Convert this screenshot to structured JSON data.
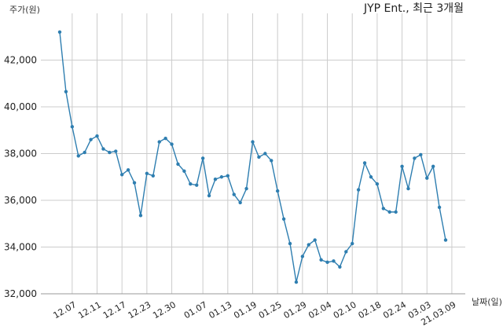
{
  "chart_data": {
    "type": "line",
    "title": "JYP Ent., 최근 3개월",
    "ylabel": "주가(원)",
    "xlabel": "날짜(일)",
    "ylim": [
      32000,
      44000
    ],
    "yticks": [
      32000,
      34000,
      36000,
      38000,
      40000,
      42000
    ],
    "ytick_labels": [
      "32,000",
      "34,000",
      "36,000",
      "38,000",
      "40,000",
      "42,000"
    ],
    "grid": true,
    "xtick_labels": [
      "12.07",
      "12.11",
      "12.17",
      "12.23",
      "12.30",
      "01.07",
      "01.13",
      "01.19",
      "01.25",
      "01.29",
      "02.04",
      "02.10",
      "02.18",
      "02.24",
      "03.03",
      "21.03.09"
    ],
    "xtick_index": [
      2,
      6,
      10,
      14,
      18,
      23,
      27,
      31,
      35,
      39,
      43,
      47,
      51,
      55,
      59,
      63
    ],
    "color": "#2e7eb0",
    "series": [
      {
        "values": [
          43200,
          40650,
          39150,
          37900,
          38050,
          38600,
          38750,
          38200,
          38050,
          38100,
          37100,
          37300,
          36750,
          35350,
          37150,
          37050,
          38500,
          38650,
          38400,
          37550,
          37250,
          36700,
          36650,
          37800,
          36200,
          36900,
          37000,
          37050,
          36250,
          35900,
          36500,
          38500,
          37850,
          38000,
          37700,
          36400,
          35200,
          34150,
          32500,
          33600,
          34100,
          34300,
          33450,
          33350,
          33400,
          33150,
          33800,
          34150,
          36450,
          37600,
          37000,
          36700,
          35650,
          35500,
          35500,
          37450,
          36500,
          37800,
          37950,
          36950,
          37450,
          35700,
          34300
        ]
      }
    ]
  }
}
